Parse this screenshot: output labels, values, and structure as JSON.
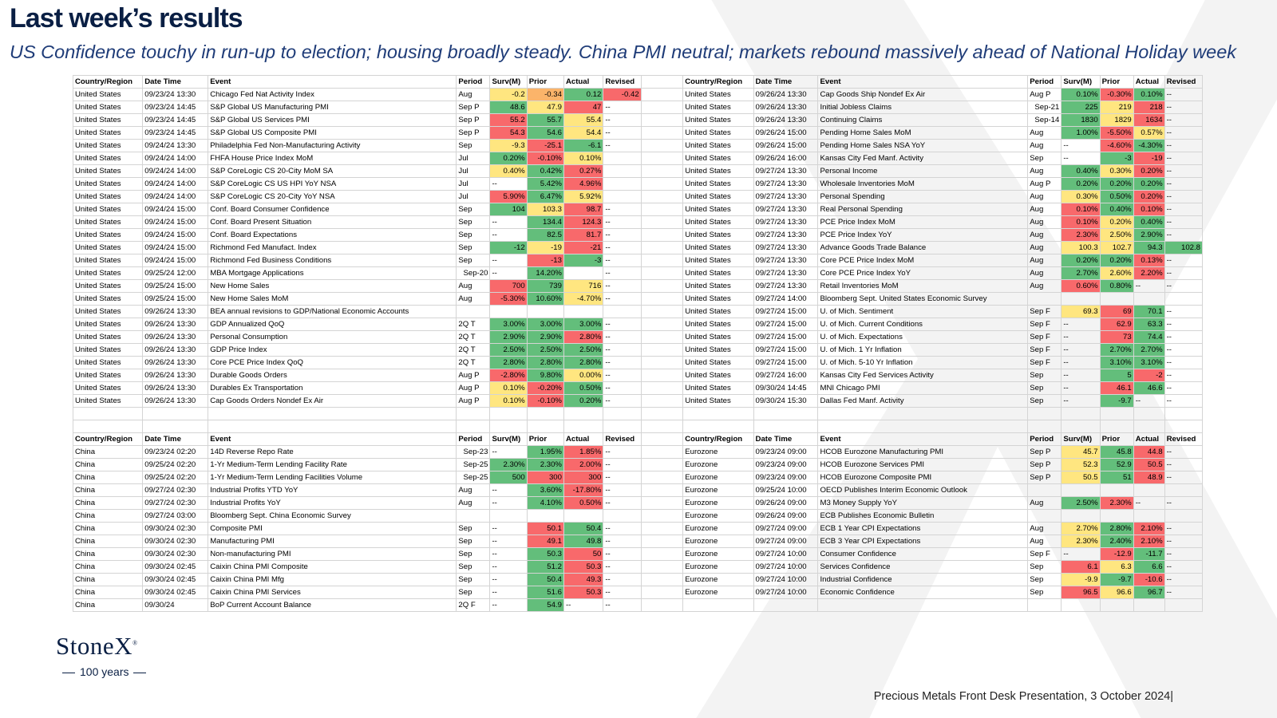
{
  "header": {
    "title": "Last week’s results",
    "subtitle": "US Confidence touchy in run-up to election; housing broadly steady.  China PMI neutral; markets rebound massively ahead of National Holiday week"
  },
  "columns": [
    "Country/Region",
    "Date Time",
    "Event",
    "Period",
    "Surv(M)",
    "Prior",
    "Actual",
    "Revised"
  ],
  "colors": {
    "g": "#63be7b",
    "y": "#ffe680",
    "r": "#f8696b",
    "o": "#fbb46a"
  },
  "blocks": {
    "us_left": [
      [
        "United States",
        "09/23/24 13:30",
        "Chicago Fed Nat Activity Index",
        "Aug",
        "-0.2",
        "-0.34",
        "0.12",
        "-0.42",
        "yog",
        "r"
      ],
      [
        "United States",
        "09/23/24 14:45",
        "S&P Global US Manufacturing PMI",
        "Sep P",
        "48.6",
        "47.9",
        "47",
        "--",
        "gyr",
        ""
      ],
      [
        "United States",
        "09/23/24 14:45",
        "S&P Global US Services PMI",
        "Sep P",
        "55.2",
        "55.7",
        "55.4",
        "--",
        "rgy",
        ""
      ],
      [
        "United States",
        "09/23/24 14:45",
        "S&P Global US Composite PMI",
        "Sep P",
        "54.3",
        "54.6",
        "54.4",
        "--",
        "rgy",
        ""
      ],
      [
        "United States",
        "09/24/24 13:30",
        "Philadelphia Fed Non-Manufacturing Activity",
        "Sep",
        "-9.3",
        "-25.1",
        "-6.1",
        "--",
        "yrg",
        ""
      ],
      [
        "United States",
        "09/24/24 14:00",
        "FHFA House Price Index MoM",
        "Jul",
        "0.20%",
        "-0.10%",
        "0.10%",
        "",
        "gry",
        ""
      ],
      [
        "United States",
        "09/24/24 14:00",
        "S&P CoreLogic CS 20-City MoM SA",
        "Jul",
        "0.40%",
        "0.42%",
        "0.27%",
        "",
        "ygr",
        ""
      ],
      [
        "United States",
        "09/24/24 14:00",
        "S&P CoreLogic CS US HPI YoY NSA",
        "Jul",
        "--",
        "5.42%",
        "4.96%",
        "",
        "-gr",
        ""
      ],
      [
        "United States",
        "09/24/24 14:00",
        "S&P CoreLogic CS 20-City YoY NSA",
        "Jul",
        "5.90%",
        "6.47%",
        "5.92%",
        "",
        "rgy",
        ""
      ],
      [
        "United States",
        "09/24/24 15:00",
        "Conf. Board Consumer Confidence",
        "Sep",
        "104",
        "103.3",
        "98.7",
        "--",
        "gyr",
        ""
      ],
      [
        "United States",
        "09/24/24 15:00",
        "Conf. Board Present Situation",
        "Sep",
        "--",
        "134.4",
        "124.3",
        "--",
        "-gr",
        ""
      ],
      [
        "United States",
        "09/24/24 15:00",
        "Conf. Board Expectations",
        "Sep",
        "--",
        "82.5",
        "81.7",
        "--",
        "-gr",
        ""
      ],
      [
        "United States",
        "09/24/24 15:00",
        "Richmond Fed Manufact. Index",
        "Sep",
        "-12",
        "-19",
        "-21",
        "--",
        "gyr",
        ""
      ],
      [
        "United States",
        "09/24/24 15:00",
        "Richmond Fed Business Conditions",
        "Sep",
        "--",
        "-13",
        "-3",
        "--",
        "-rg",
        ""
      ],
      [
        "United States",
        "09/25/24 12:00",
        "MBA Mortgage Applications",
        "Sep-20",
        "--",
        "14.20%",
        "",
        "--",
        "-g-",
        ""
      ],
      [
        "United States",
        "09/25/24 15:00",
        "New Home Sales",
        "Aug",
        "700",
        "739",
        "716",
        "--",
        "rgy",
        ""
      ],
      [
        "United States",
        "09/25/24 15:00",
        "New Home Sales MoM",
        "Aug",
        "-5.30%",
        "10.60%",
        "-4.70%",
        "--",
        "rgy",
        ""
      ],
      [
        "United States",
        "09/26/24 13:30",
        "BEA annual revisions to GDP/National Economic Accounts",
        "",
        "",
        "",
        "",
        "",
        "---",
        ""
      ],
      [
        "United States",
        "09/26/24 13:30",
        "GDP Annualized QoQ",
        "2Q T",
        "3.00%",
        "3.00%",
        "3.00%",
        "--",
        "ggg",
        ""
      ],
      [
        "United States",
        "09/26/24 13:30",
        "Personal Consumption",
        "2Q T",
        "2.90%",
        "2.90%",
        "2.80%",
        "--",
        "ggr",
        ""
      ],
      [
        "United States",
        "09/26/24 13:30",
        "GDP Price Index",
        "2Q T",
        "2.50%",
        "2.50%",
        "2.50%",
        "--",
        "ggg",
        ""
      ],
      [
        "United States",
        "09/26/24 13:30",
        "Core PCE Price Index QoQ",
        "2Q T",
        "2.80%",
        "2.80%",
        "2.80%",
        "--",
        "ggg",
        ""
      ],
      [
        "United States",
        "09/26/24 13:30",
        "Durable Goods Orders",
        "Aug P",
        "-2.80%",
        "9.80%",
        "0.00%",
        "--",
        "rgy",
        ""
      ],
      [
        "United States",
        "09/26/24 13:30",
        "Durables Ex Transportation",
        "Aug P",
        "0.10%",
        "-0.20%",
        "0.50%",
        "--",
        "yrg",
        ""
      ],
      [
        "United States",
        "09/26/24 13:30",
        "Cap Goods Orders Nondef Ex Air",
        "Aug P",
        "0.10%",
        "-0.10%",
        "0.20%",
        "--",
        "yrg",
        ""
      ]
    ],
    "us_right": [
      [
        "United States",
        "09/26/24 13:30",
        "Cap Goods Ship Nondef Ex Air",
        "Aug P",
        "0.10%",
        "-0.30%",
        "0.10%",
        "--",
        "grg",
        ""
      ],
      [
        "United States",
        "09/26/24 13:30",
        "Initial Jobless Claims",
        "Sep-21",
        "225",
        "219",
        "218",
        "--",
        "gyr",
        ""
      ],
      [
        "United States",
        "09/26/24 13:30",
        "Continuing Claims",
        "Sep-14",
        "1830",
        "1829",
        "1634",
        "--",
        "gyr",
        ""
      ],
      [
        "United States",
        "09/26/24 15:00",
        "Pending Home Sales MoM",
        "Aug",
        "1.00%",
        "-5.50%",
        "0.57%",
        "--",
        "gry",
        ""
      ],
      [
        "United States",
        "09/26/24 15:00",
        "Pending Home Sales NSA YoY",
        "Aug",
        "--",
        "-4.60%",
        "-4.30%",
        "--",
        "-rg",
        ""
      ],
      [
        "United States",
        "09/26/24 16:00",
        "Kansas City Fed Manf. Activity",
        "Sep",
        "--",
        "-3",
        "-19",
        "--",
        "-gr",
        ""
      ],
      [
        "United States",
        "09/27/24 13:30",
        "Personal Income",
        "Aug",
        "0.40%",
        "0.30%",
        "0.20%",
        "--",
        "gyr",
        ""
      ],
      [
        "United States",
        "09/27/24 13:30",
        "Wholesale Inventories MoM",
        "Aug P",
        "0.20%",
        "0.20%",
        "0.20%",
        "--",
        "ggg",
        ""
      ],
      [
        "United States",
        "09/27/24 13:30",
        "Personal Spending",
        "Aug",
        "0.30%",
        "0.50%",
        "0.20%",
        "--",
        "ygr",
        ""
      ],
      [
        "United States",
        "09/27/24 13:30",
        "Real Personal Spending",
        "Aug",
        "0.10%",
        "0.40%",
        "0.10%",
        "--",
        "rgr",
        ""
      ],
      [
        "United States",
        "09/27/24 13:30",
        "PCE Price Index MoM",
        "Aug",
        "0.10%",
        "0.20%",
        "0.40%",
        "--",
        "ryg",
        ""
      ],
      [
        "United States",
        "09/27/24 13:30",
        "PCE Price Index YoY",
        "Aug",
        "2.30%",
        "2.50%",
        "2.90%",
        "--",
        "ryg",
        ""
      ],
      [
        "United States",
        "09/27/24 13:30",
        "Advance Goods Trade Balance",
        "Aug",
        "100.3",
        "102.7",
        "94.3",
        "102.8",
        "yyg",
        "g"
      ],
      [
        "United States",
        "09/27/24 13:30",
        "Core PCE Price Index MoM",
        "Aug",
        "0.20%",
        "0.20%",
        "0.13%",
        "--",
        "ggr",
        ""
      ],
      [
        "United States",
        "09/27/24 13:30",
        "Core PCE Price Index YoY",
        "Aug",
        "2.70%",
        "2.60%",
        "2.20%",
        "--",
        "gyr",
        ""
      ],
      [
        "United States",
        "09/27/24 13:30",
        "Retail Inventories MoM",
        "Aug",
        "0.60%",
        "0.80%",
        "--",
        "--",
        "rg-",
        ""
      ],
      [
        "United States",
        "09/27/24 14:00",
        "Bloomberg Sept. United States Economic Survey",
        "",
        "",
        "",
        "",
        "",
        "---",
        ""
      ],
      [
        "United States",
        "09/27/24 15:00",
        "U. of Mich. Sentiment",
        "Sep F",
        "69.3",
        "69",
        "70.1",
        "--",
        "yrg",
        ""
      ],
      [
        "United States",
        "09/27/24 15:00",
        "U. of Mich. Current Conditions",
        "Sep F",
        "--",
        "62.9",
        "63.3",
        "--",
        "-rg",
        ""
      ],
      [
        "United States",
        "09/27/24 15:00",
        "U. of Mich. Expectations",
        "Sep F",
        "--",
        "73",
        "74.4",
        "--",
        "-rg",
        ""
      ],
      [
        "United States",
        "09/27/24 15:00",
        "U. of Mich. 1 Yr Inflation",
        "Sep F",
        "--",
        "2.70%",
        "2.70%",
        "--",
        "-gg",
        ""
      ],
      [
        "United States",
        "09/27/24 15:00",
        "U. of Mich. 5-10 Yr Inflation",
        "Sep F",
        "--",
        "3.10%",
        "3.10%",
        "--",
        "-gg",
        ""
      ],
      [
        "United States",
        "09/27/24 16:00",
        "Kansas City Fed Services Activity",
        "Sep",
        "--",
        "5",
        "-2",
        "--",
        "-gr",
        ""
      ],
      [
        "United States",
        "09/30/24 14:45",
        "MNI Chicago PMI",
        "Sep",
        "--",
        "46.1",
        "46.6",
        "--",
        "-rg",
        ""
      ],
      [
        "United States",
        "09/30/24 15:30",
        "Dallas Fed Manf. Activity",
        "Sep",
        "--",
        "-9.7",
        "--",
        "--",
        "-g-",
        ""
      ]
    ],
    "china": [
      [
        "China",
        "09/23/24 02:20",
        "14D Reverse Repo Rate",
        "Sep-23",
        "--",
        "1.95%",
        "1.85%",
        "--",
        "-gr",
        ""
      ],
      [
        "China",
        "09/25/24 02:20",
        "1-Yr Medium-Term Lending Facility Rate",
        "Sep-25",
        "2.30%",
        "2.30%",
        "2.00%",
        "--",
        "ggr",
        ""
      ],
      [
        "China",
        "09/25/24 02:20",
        "1-Yr Medium-Term Lending Facilities Volume",
        "Sep-25",
        "500",
        "300",
        "300",
        "--",
        "grr",
        ""
      ],
      [
        "China",
        "09/27/24 02:30",
        "Industrial Profits YTD YoY",
        "Aug",
        "--",
        "3.60%",
        "-17.80%",
        "--",
        "-gr",
        ""
      ],
      [
        "China",
        "09/27/24 02:30",
        "Industrial Profits YoY",
        "Aug",
        "--",
        "4.10%",
        "0.50%",
        "--",
        "-gr",
        ""
      ],
      [
        "China",
        "09/27/24 03:00",
        "Bloomberg Sept. China Economic Survey",
        "",
        "",
        "",
        "",
        "",
        "---",
        ""
      ],
      [
        "China",
        "09/30/24 02:30",
        "Composite PMI",
        "Sep",
        "--",
        "50.1",
        "50.4",
        "--",
        "-rg",
        ""
      ],
      [
        "China",
        "09/30/24 02:30",
        "Manufacturing PMI",
        "Sep",
        "--",
        "49.1",
        "49.8",
        "--",
        "-rg",
        ""
      ],
      [
        "China",
        "09/30/24 02:30",
        "Non-manufacturing PMI",
        "Sep",
        "--",
        "50.3",
        "50",
        "--",
        "-gr",
        ""
      ],
      [
        "China",
        "09/30/24 02:45",
        "Caixin China PMI Composite",
        "Sep",
        "--",
        "51.2",
        "50.3",
        "--",
        "-gr",
        ""
      ],
      [
        "China",
        "09/30/24 02:45",
        "Caixin China PMI Mfg",
        "Sep",
        "--",
        "50.4",
        "49.3",
        "--",
        "-gr",
        ""
      ],
      [
        "China",
        "09/30/24 02:45",
        "Caixin China PMI Services",
        "Sep",
        "--",
        "51.6",
        "50.3",
        "--",
        "-gr",
        ""
      ],
      [
        "China",
        "09/30/24",
        "BoP Current Account Balance",
        "2Q F",
        "--",
        "54.9",
        "--",
        "--",
        "-g-",
        ""
      ]
    ],
    "eurozone": [
      [
        "Eurozone",
        "09/23/24 09:00",
        "HCOB Eurozone Manufacturing PMI",
        "Sep P",
        "45.7",
        "45.8",
        "44.8",
        "--",
        "ygr",
        ""
      ],
      [
        "Eurozone",
        "09/23/24 09:00",
        "HCOB Eurozone Services PMI",
        "Sep P",
        "52.3",
        "52.9",
        "50.5",
        "--",
        "ygr",
        ""
      ],
      [
        "Eurozone",
        "09/23/24 09:00",
        "HCOB Eurozone Composite PMI",
        "Sep P",
        "50.5",
        "51",
        "48.9",
        "--",
        "ygr",
        ""
      ],
      [
        "Eurozone",
        "09/25/24 10:00",
        "OECD Publishes Interim Economic Outlook",
        "",
        "",
        "",
        "",
        "",
        "---",
        ""
      ],
      [
        "Eurozone",
        "09/26/24 09:00",
        "M3 Money Supply YoY",
        "Aug",
        "2.50%",
        "2.30%",
        "--",
        "--",
        "gr-",
        ""
      ],
      [
        "Eurozone",
        "09/26/24 09:00",
        "ECB Publishes Economic Bulletin",
        "",
        "",
        "",
        "",
        "",
        "---",
        ""
      ],
      [
        "Eurozone",
        "09/27/24 09:00",
        "ECB 1 Year CPI Expectations",
        "Aug",
        "2.70%",
        "2.80%",
        "2.10%",
        "--",
        "ygr",
        ""
      ],
      [
        "Eurozone",
        "09/27/24 09:00",
        "ECB 3 Year CPI Expectations",
        "Aug",
        "2.30%",
        "2.40%",
        "2.10%",
        "--",
        "ygr",
        ""
      ],
      [
        "Eurozone",
        "09/27/24 10:00",
        "Consumer Confidence",
        "Sep F",
        "--",
        "-12.9",
        "-11.7",
        "--",
        "-rg",
        ""
      ],
      [
        "Eurozone",
        "09/27/24 10:00",
        "Services Confidence",
        "Sep",
        "6.1",
        "6.3",
        "6.6",
        "--",
        "ryg",
        ""
      ],
      [
        "Eurozone",
        "09/27/24 10:00",
        "Industrial Confidence",
        "Sep",
        "-9.9",
        "-9.7",
        "-10.6",
        "--",
        "ygr",
        ""
      ],
      [
        "Eurozone",
        "09/27/24 10:00",
        "Economic Confidence",
        "Sep",
        "96.5",
        "96.6",
        "96.7",
        "--",
        "ryg",
        ""
      ]
    ]
  },
  "logo": {
    "name": "StoneX",
    "mark": "®",
    "tagline": "100 years"
  },
  "footer": "Precious Metals Front Desk Presentation, 3 October 2024|"
}
